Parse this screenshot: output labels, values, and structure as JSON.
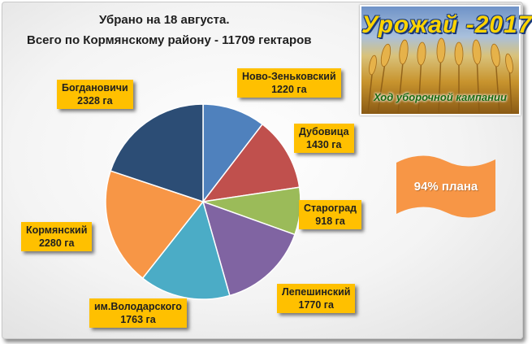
{
  "header": {
    "line1": "Убрано на 18 августа.",
    "line2": "Всего по Кормянскому району -  11709 гектаров"
  },
  "banner": {
    "title": "Урожай -2017",
    "subtitle": "Ход уборочной кампании"
  },
  "badge": {
    "text": "94% плана",
    "color": "#f79646"
  },
  "chart_data": {
    "type": "pie",
    "title": "Убрано на 18 августа. Всего по Кормянскому району -  11709 гектаров",
    "unit": "га",
    "labels": [
      "Ново-Зеньковский",
      "Дубовица",
      "Староград",
      "Лепешинский",
      "им.Володарского",
      "Кормянский",
      "Богдановичи"
    ],
    "values": [
      1220,
      1430,
      918,
      1770,
      1763,
      2280,
      2328
    ],
    "value_labels": [
      "1220 га",
      "1430 га",
      "918 га",
      "1770 га",
      "1763 га",
      "2280 га",
      "2328 га"
    ],
    "colors": [
      "#4f81bd",
      "#c0504d",
      "#9bbb59",
      "#8064a2",
      "#4bacc6",
      "#f79646",
      "#2c4d75"
    ],
    "start": "12 o'clock",
    "direction": "clockwise",
    "legend": "none"
  }
}
